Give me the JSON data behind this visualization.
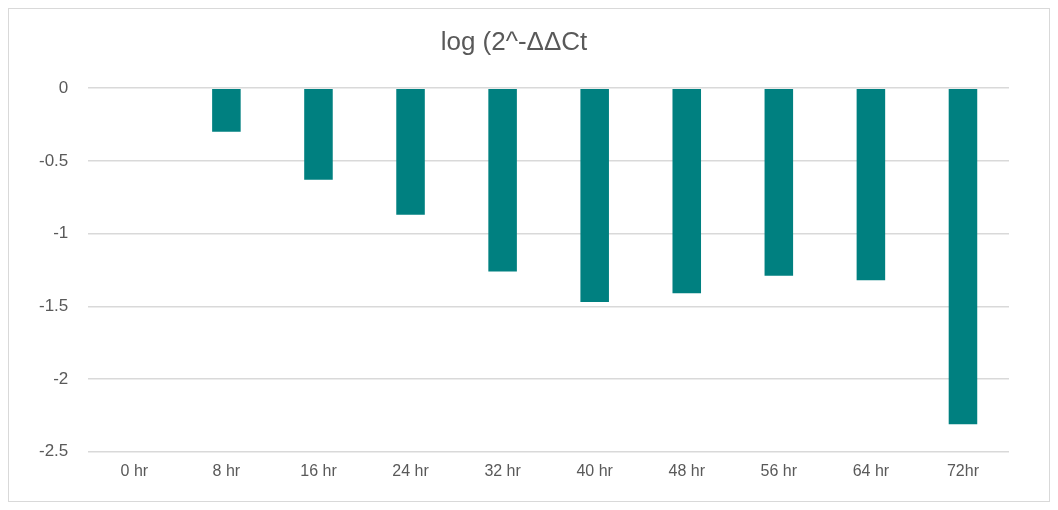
{
  "chart_data": {
    "type": "bar",
    "title": "log (2^-ΔΔCt",
    "categories": [
      "0 hr",
      "8 hr",
      "16 hr",
      "24 hr",
      "32 hr",
      "40 hr",
      "48 hr",
      "56 hr",
      "64 hr",
      "72hr"
    ],
    "values": [
      0,
      -0.3,
      -0.63,
      -0.87,
      -1.26,
      -1.47,
      -1.41,
      -1.29,
      -1.32,
      -2.31
    ],
    "color": "#008080",
    "ylim": [
      -2.5,
      0
    ],
    "yticks": [
      0,
      -0.5,
      -1,
      -1.5,
      -2,
      -2.5
    ],
    "grid": "y",
    "legend": false
  }
}
